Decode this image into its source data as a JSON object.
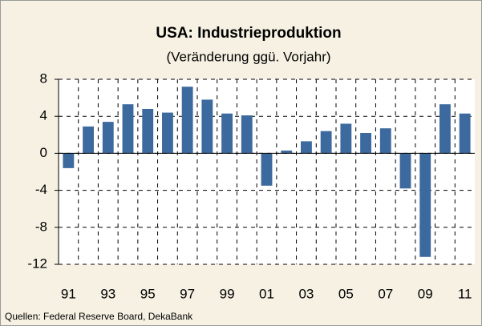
{
  "chart_data": {
    "type": "bar",
    "title": "USA: Industrieproduktion",
    "subtitle": "(Veränderung ggü. Vorjahr)",
    "source": "Quellen: Federal Reserve Board, DekaBank",
    "categories": [
      "91",
      null,
      "93",
      null,
      "95",
      null,
      "97",
      null,
      "99",
      null,
      "01",
      null,
      "03",
      null,
      "05",
      null,
      "07",
      null,
      "09",
      null,
      "11"
    ],
    "values": [
      -1.6,
      2.9,
      3.4,
      5.3,
      4.8,
      4.4,
      7.2,
      5.8,
      4.3,
      4.1,
      -3.5,
      0.3,
      1.3,
      2.4,
      3.2,
      2.2,
      2.7,
      -3.8,
      -11.2,
      5.3,
      4.3
    ],
    "color": "#3d6a9e",
    "ylim": [
      -12,
      8
    ],
    "yticks": [
      -12,
      -8,
      -4,
      0,
      4,
      8
    ],
    "grid": true
  }
}
